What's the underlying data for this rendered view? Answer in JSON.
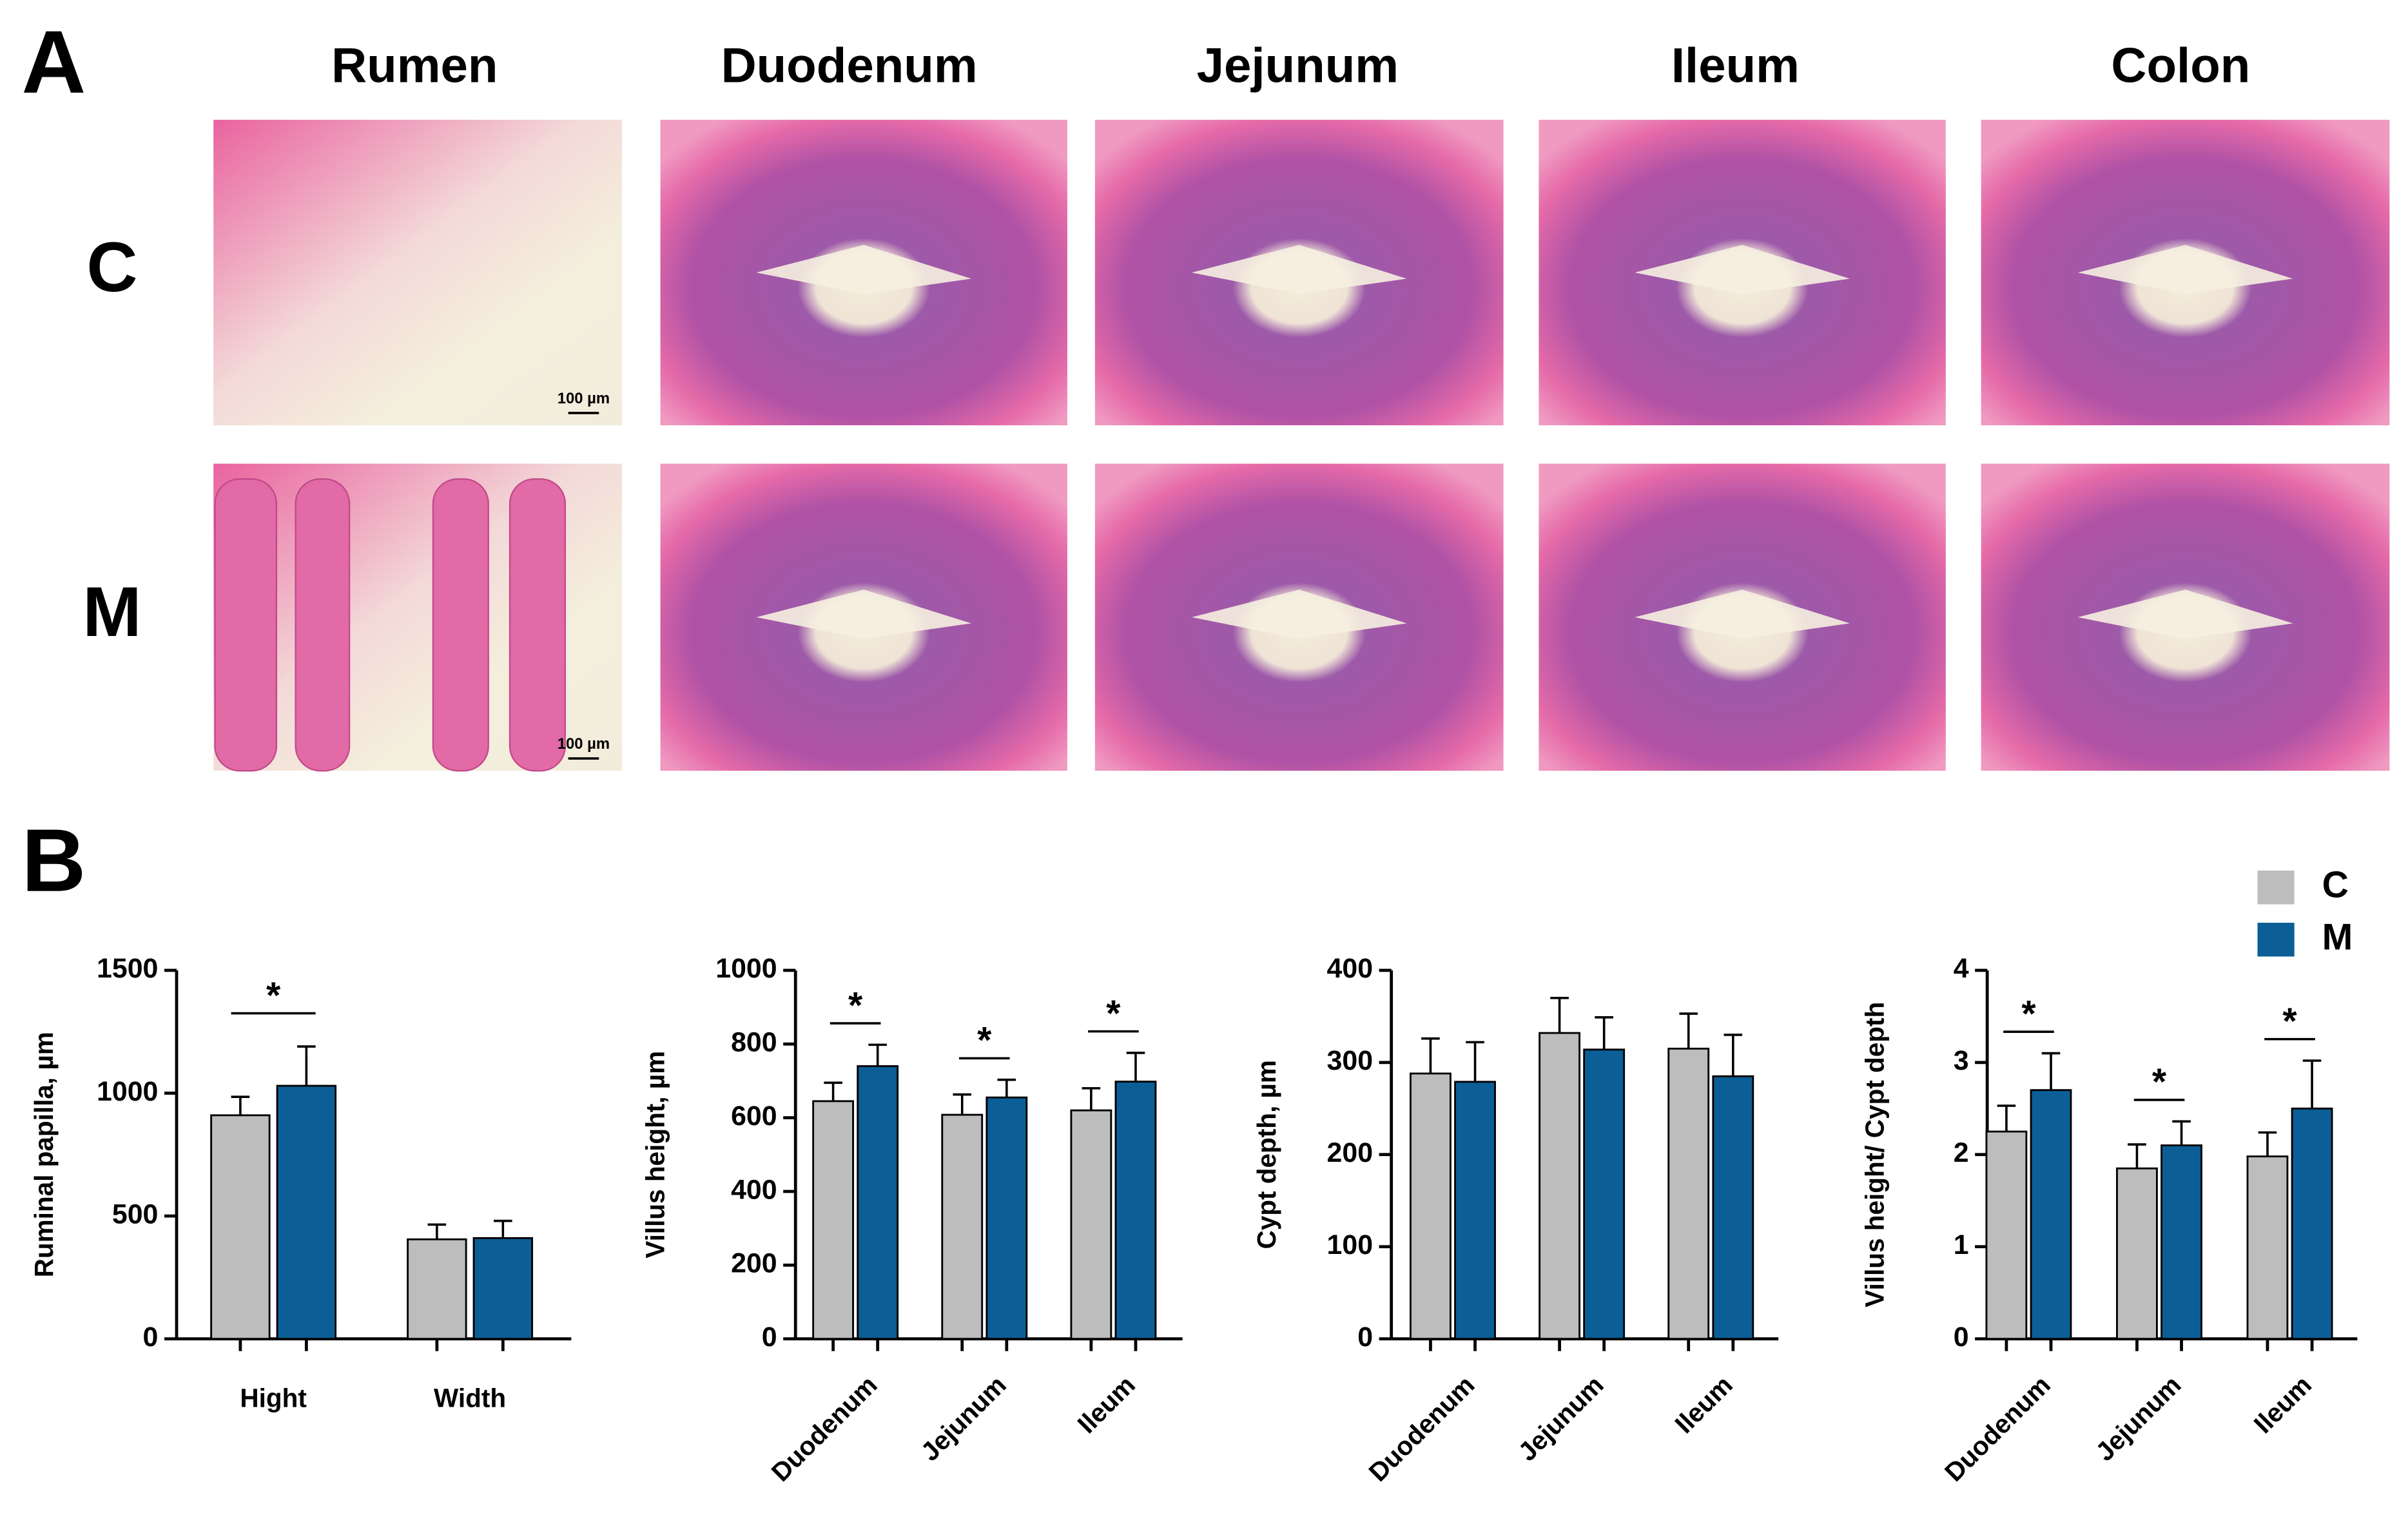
{
  "panels": {
    "a": "A",
    "b": "B"
  },
  "histology": {
    "columns": [
      "Rumen",
      "Duodenum",
      "Jejunum",
      "Ileum",
      "Colon"
    ],
    "rows": [
      "C",
      "M"
    ],
    "scale_bars": [
      "100 µm",
      "100 µm"
    ]
  },
  "chart_data": [
    {
      "type": "bar",
      "y_label": "Ruminal papilla, µm",
      "categories": [
        "Hight",
        "Width"
      ],
      "series": [
        {
          "name": "C",
          "color": "#bdbdbd",
          "values": [
            910,
            405
          ],
          "error": [
            75,
            60
          ]
        },
        {
          "name": "M",
          "color": "#0b5f96",
          "values": [
            1030,
            410
          ],
          "error": [
            160,
            70
          ]
        }
      ],
      "significance": [
        "*",
        null
      ],
      "ylim": [
        0,
        1500
      ],
      "yticks": [
        0,
        500,
        1000,
        1500
      ]
    },
    {
      "type": "bar",
      "y_label": "Villus height, µm",
      "categories": [
        "Duodenum",
        "Jejunum",
        "Ileum"
      ],
      "series": [
        {
          "name": "C",
          "color": "#bdbdbd",
          "values": [
            645,
            608,
            620
          ],
          "error": [
            50,
            55,
            60
          ]
        },
        {
          "name": "M",
          "color": "#0b5f96",
          "values": [
            740,
            655,
            698
          ],
          "error": [
            58,
            48,
            78
          ]
        }
      ],
      "significance": [
        "*",
        "*",
        "*"
      ],
      "ylim": [
        0,
        1000
      ],
      "yticks": [
        0,
        200,
        400,
        600,
        800,
        1000
      ]
    },
    {
      "type": "bar",
      "y_label": "Cypt depth, µm",
      "categories": [
        "Duodenum",
        "Jejunum",
        "Ileum"
      ],
      "series": [
        {
          "name": "C",
          "color": "#bdbdbd",
          "values": [
            288,
            332,
            315
          ],
          "error": [
            38,
            38,
            38
          ]
        },
        {
          "name": "M",
          "color": "#0b5f96",
          "values": [
            279,
            314,
            285
          ],
          "error": [
            43,
            35,
            45
          ]
        }
      ],
      "ylim": [
        0,
        400
      ],
      "yticks": [
        0,
        100,
        200,
        300,
        400
      ]
    },
    {
      "type": "bar",
      "y_label": "Villus height/ Cypt depth",
      "categories": [
        "Duodenum",
        "Jejunum",
        "Ileum"
      ],
      "series": [
        {
          "name": "C",
          "color": "#bdbdbd",
          "values": [
            2.25,
            1.85,
            1.98
          ],
          "error": [
            0.28,
            0.26,
            0.26
          ]
        },
        {
          "name": "M",
          "color": "#0b5f96",
          "values": [
            2.7,
            2.1,
            2.5
          ],
          "error": [
            0.4,
            0.26,
            0.52
          ]
        }
      ],
      "significance": [
        "*",
        "*",
        "*"
      ],
      "ylim": [
        0,
        4
      ],
      "yticks": [
        0,
        1,
        2,
        3,
        4
      ]
    }
  ]
}
